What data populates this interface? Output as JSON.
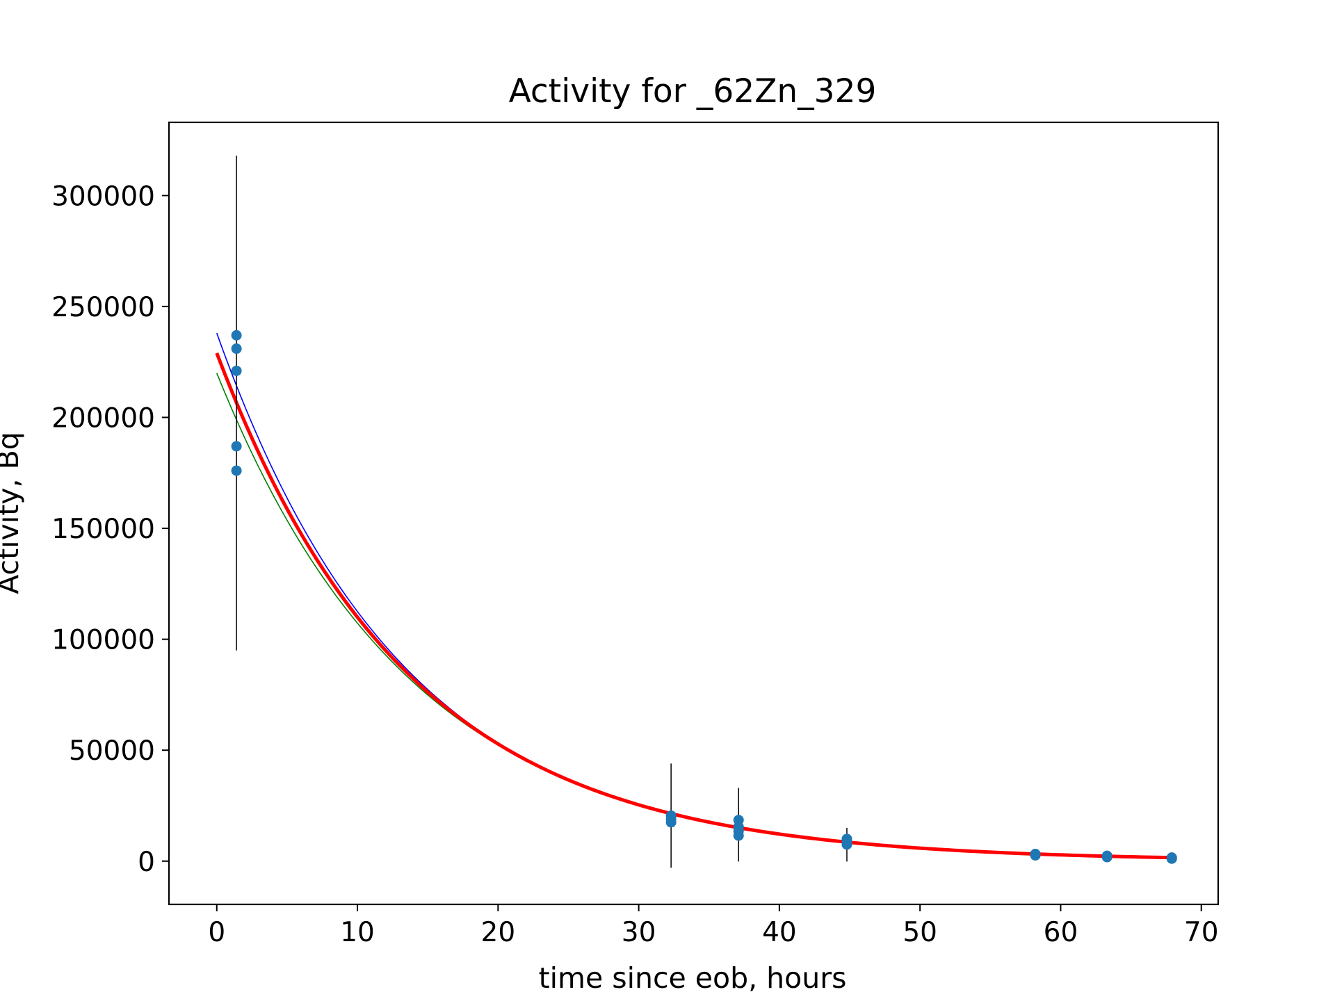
{
  "chart_data": {
    "type": "scatter",
    "title": "Activity for _62Zn_329",
    "xlabel": "time since eob, hours",
    "ylabel": "Activity, Bq",
    "xlim": [
      -3.4,
      71.2
    ],
    "ylim": [
      -19500,
      333000
    ],
    "xticks": [
      "0",
      "10",
      "20",
      "30",
      "40",
      "50",
      "60",
      "70"
    ],
    "yticks": [
      "0",
      "50000",
      "100000",
      "150000",
      "200000",
      "250000",
      "300000"
    ],
    "grid": false,
    "colors": {
      "points": "#1f77b4",
      "errorbars": "#000000",
      "fit": "#ff0000",
      "upper_bound": "#0000ff",
      "lower_bound": "#008000"
    },
    "points": [
      {
        "x": 1.4,
        "y": 237000
      },
      {
        "x": 1.4,
        "y": 231000
      },
      {
        "x": 1.4,
        "y": 221000
      },
      {
        "x": 1.4,
        "y": 187000
      },
      {
        "x": 1.4,
        "y": 176000
      },
      {
        "x": 32.3,
        "y": 20500
      },
      {
        "x": 32.3,
        "y": 19000
      },
      {
        "x": 32.3,
        "y": 17500
      },
      {
        "x": 37.1,
        "y": 18500
      },
      {
        "x": 37.1,
        "y": 15500
      },
      {
        "x": 37.1,
        "y": 13500
      },
      {
        "x": 37.1,
        "y": 11500
      },
      {
        "x": 44.8,
        "y": 10000
      },
      {
        "x": 44.8,
        "y": 8500
      },
      {
        "x": 44.8,
        "y": 7500
      },
      {
        "x": 58.2,
        "y": 3200
      },
      {
        "x": 58.2,
        "y": 2600
      },
      {
        "x": 63.3,
        "y": 2400
      },
      {
        "x": 63.3,
        "y": 1800
      },
      {
        "x": 67.9,
        "y": 1600
      },
      {
        "x": 67.9,
        "y": 1100
      }
    ],
    "errorbars": [
      {
        "x": 1.4,
        "low": 95000,
        "high": 318000
      },
      {
        "x": 32.3,
        "low": -3000,
        "high": 44000
      },
      {
        "x": 37.1,
        "low": -200,
        "high": 33000
      },
      {
        "x": 44.8,
        "low": -200,
        "high": 15000
      }
    ],
    "series": [
      {
        "x_range": [
          0,
          68
        ],
        "a0": 229000,
        "half_life_hours": 9.45
      },
      {
        "x_range": [
          0,
          68
        ],
        "a0": 238000,
        "half_life_hours": 9.25
      },
      {
        "x_range": [
          0,
          68
        ],
        "a0": 220000,
        "half_life_hours": 9.65
      }
    ]
  }
}
